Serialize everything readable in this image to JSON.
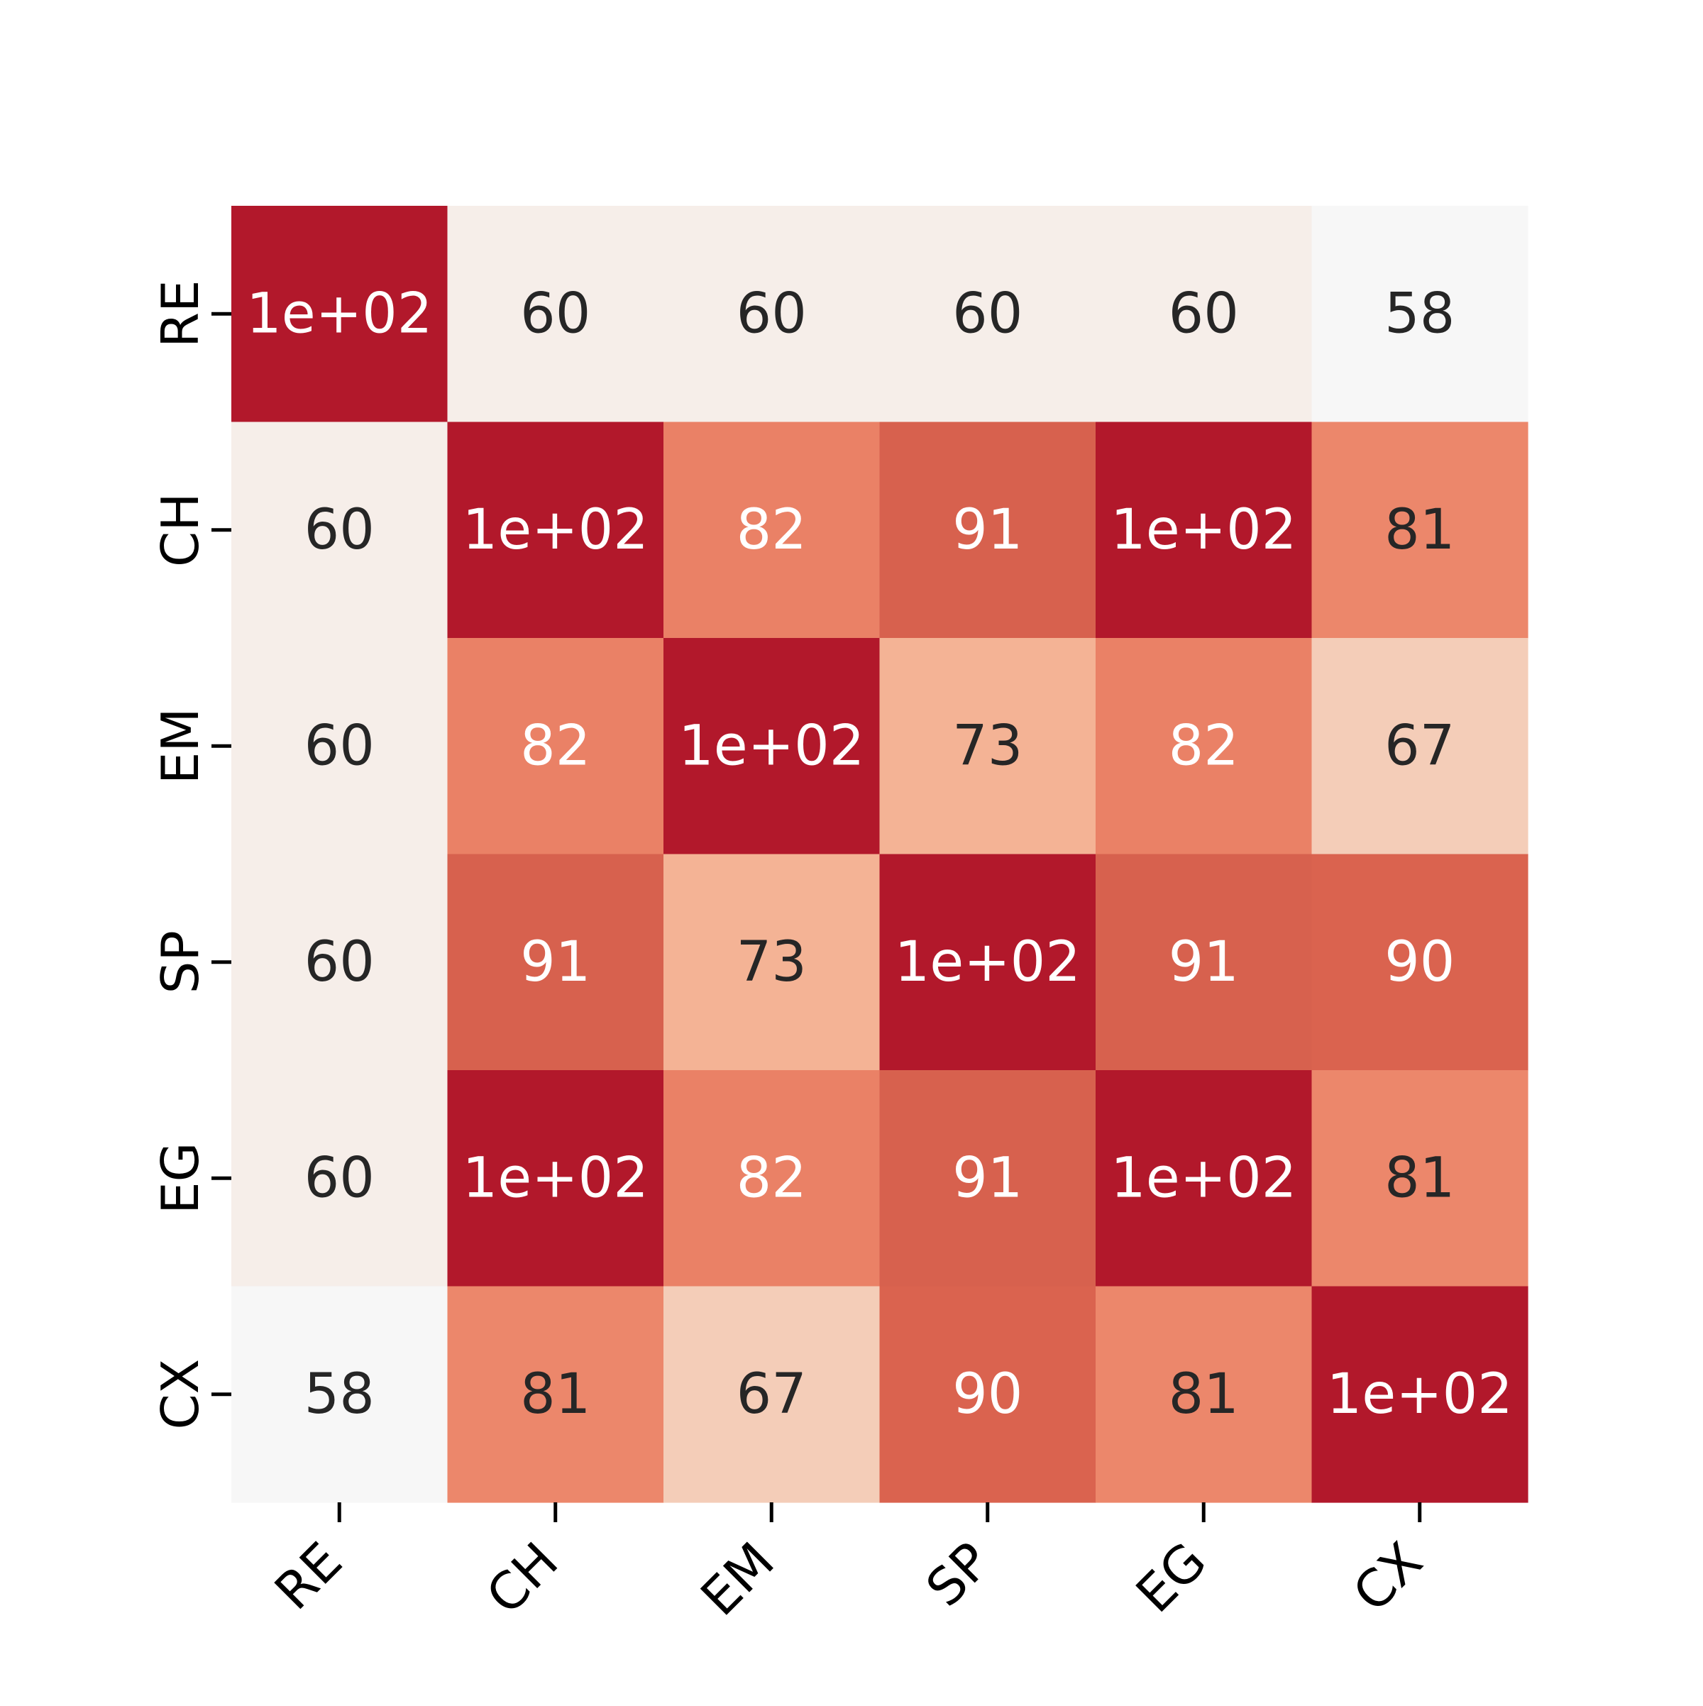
{
  "chart_data": {
    "type": "heatmap",
    "title": "",
    "xlabel": "",
    "ylabel": "",
    "x_categories": [
      "RE",
      "CH",
      "EM",
      "SP",
      "EG",
      "CX"
    ],
    "y_categories": [
      "RE",
      "CH",
      "EM",
      "SP",
      "EG",
      "CX"
    ],
    "values": [
      [
        100,
        60,
        60,
        60,
        60,
        58
      ],
      [
        60,
        100,
        82,
        91,
        100,
        81
      ],
      [
        60,
        82,
        100,
        73,
        82,
        67
      ],
      [
        60,
        91,
        73,
        100,
        91,
        90
      ],
      [
        60,
        100,
        82,
        91,
        100,
        81
      ],
      [
        58,
        81,
        67,
        90,
        81,
        100
      ]
    ],
    "labels": [
      [
        "1e+02",
        "60",
        "60",
        "60",
        "60",
        "58"
      ],
      [
        "60",
        "1e+02",
        "82",
        "91",
        "1e+02",
        "81"
      ],
      [
        "60",
        "82",
        "1e+02",
        "73",
        "82",
        "67"
      ],
      [
        "60",
        "91",
        "73",
        "1e+02",
        "91",
        "90"
      ],
      [
        "60",
        "1e+02",
        "82",
        "91",
        "1e+02",
        "81"
      ],
      [
        "58",
        "81",
        "67",
        "90",
        "81",
        "1e+02"
      ]
    ],
    "colormap": "RdBu_r",
    "colorbar": false,
    "grid": false
  }
}
